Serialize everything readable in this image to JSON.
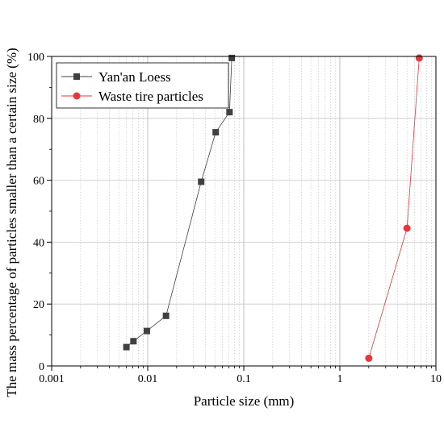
{
  "chart_data": {
    "type": "scatter",
    "xlabel": "Particle size (mm)",
    "ylabel": "The mass percentage of particles smaller than a certain size (%)",
    "x_scale": "log",
    "xlim": [
      0.001,
      10
    ],
    "ylim": [
      0,
      100
    ],
    "x_ticks": [
      0.001,
      0.01,
      0.1,
      1,
      10
    ],
    "x_tick_labels": [
      "0.001",
      "0.01",
      "0.1",
      "1",
      "10"
    ],
    "y_ticks": [
      0,
      20,
      40,
      60,
      80,
      100
    ],
    "y_tick_labels": [
      "0",
      "20",
      "40",
      "60",
      "80",
      "100"
    ],
    "grid": true,
    "legend_position": "top-left",
    "series": [
      {
        "name": "Yan'an Loess",
        "marker": "square",
        "color": "#404040",
        "x": [
          0.006,
          0.0071,
          0.0098,
          0.0155,
          0.036,
          0.051,
          0.071,
          0.075
        ],
        "y": [
          6.1,
          8.0,
          11.3,
          16.2,
          59.5,
          75.5,
          82.0,
          99.5
        ]
      },
      {
        "name": "Waste tire particles",
        "marker": "circle",
        "color": "#e8363c",
        "x": [
          2.0,
          5.0,
          6.7
        ],
        "y": [
          2.5,
          44.5,
          99.5
        ]
      }
    ]
  }
}
